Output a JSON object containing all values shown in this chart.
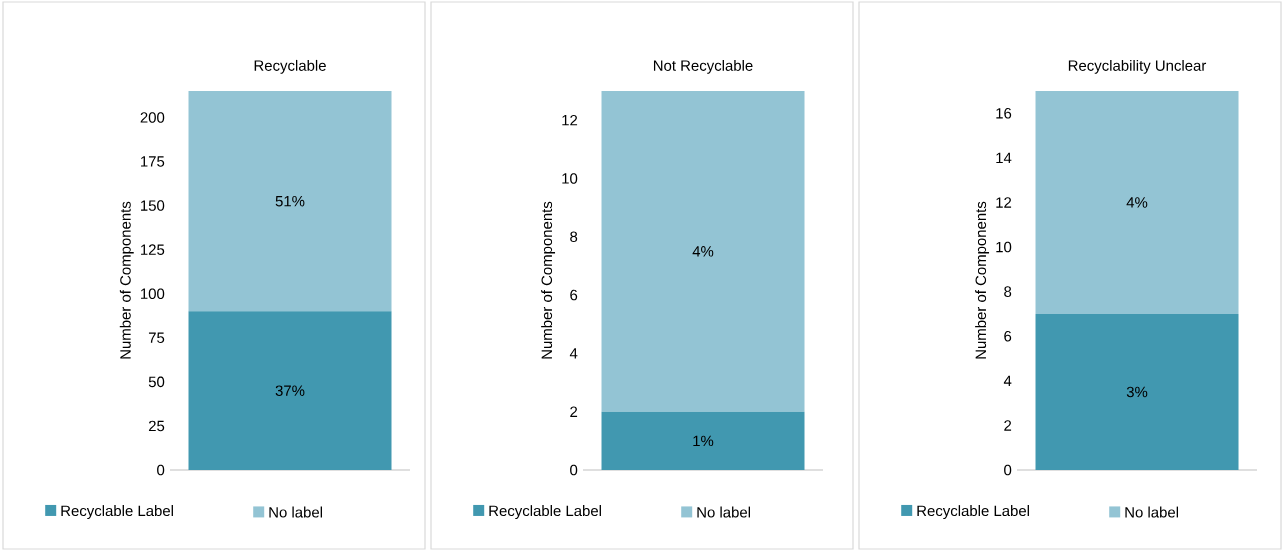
{
  "chart_data": [
    {
      "type": "bar",
      "title": "Recyclable",
      "ylabel": "Number of Components",
      "categories": [
        null
      ],
      "stacked": true,
      "legend": "bottom",
      "ylim": [
        0,
        215
      ],
      "yticks": [
        0,
        25,
        50,
        75,
        100,
        125,
        150,
        175,
        200
      ],
      "series": [
        {
          "name": "Recyclable Label",
          "color": "#4198b0",
          "values": [
            90
          ]
        },
        {
          "name": "No label",
          "color": "#93c4d4",
          "values": [
            125
          ]
        }
      ],
      "annotations": [
        "37%",
        "51%"
      ]
    },
    {
      "type": "bar",
      "title": "Not Recyclable",
      "ylabel": "Number of Components",
      "categories": [
        null
      ],
      "stacked": true,
      "legend": "bottom",
      "ylim": [
        0,
        13
      ],
      "yticks": [
        0,
        2,
        4,
        6,
        8,
        10,
        12
      ],
      "series": [
        {
          "name": "Recyclable Label",
          "color": "#4198b0",
          "values": [
            2
          ]
        },
        {
          "name": "No label",
          "color": "#93c4d4",
          "values": [
            11
          ]
        }
      ],
      "annotations": [
        "1%",
        "4%"
      ]
    },
    {
      "type": "bar",
      "title": "Recyclability Unclear",
      "ylabel": "Number of Components",
      "categories": [
        null
      ],
      "stacked": true,
      "legend": "bottom",
      "ylim": [
        0,
        17
      ],
      "yticks": [
        0,
        2,
        4,
        6,
        8,
        10,
        12,
        14,
        16
      ],
      "series": [
        {
          "name": "Recyclable Label",
          "color": "#4198b0",
          "values": [
            7
          ]
        },
        {
          "name": "No label",
          "color": "#93c4d4",
          "values": [
            10
          ]
        }
      ],
      "annotations": [
        "3%",
        "4%"
      ]
    }
  ]
}
